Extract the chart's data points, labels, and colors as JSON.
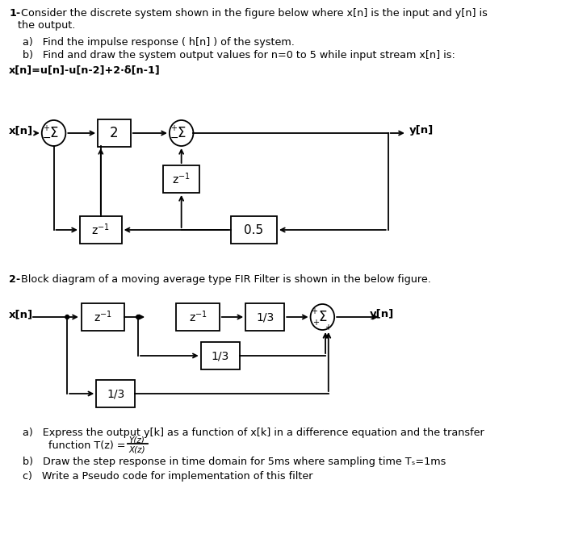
{
  "fig_width": 7.06,
  "fig_height": 6.62,
  "background_color": "#ffffff",
  "title1_bold": "1-",
  "title1_rest": " Consider the discrete system shown in the figure below where x[n] is the input and y[n] is\nthe output.",
  "q1a": "a)   Find the impulse response ( h[n] ) of the system.",
  "q1b": "b)   Find and draw the system output values for n=0 to 5 while input stream x[n] is:",
  "xn_eq": "x[n]=u[n]-u[n-2]+2·δ[n-1]",
  "title2_bold": "2-",
  "title2_rest": " Block diagram of a moving average type FIR Filter is shown in the below figure.",
  "q2a1": "a)   Express the output y[k] as a function of x[k] in a difference equation and the transfer",
  "q2a2": "        function T(z) = ",
  "q2b": "b)   Draw the step response in time domain for 5ms where sampling time Tₛ=1ms",
  "q2c": "c)   Write a Pseudo code for implementation of this filter"
}
